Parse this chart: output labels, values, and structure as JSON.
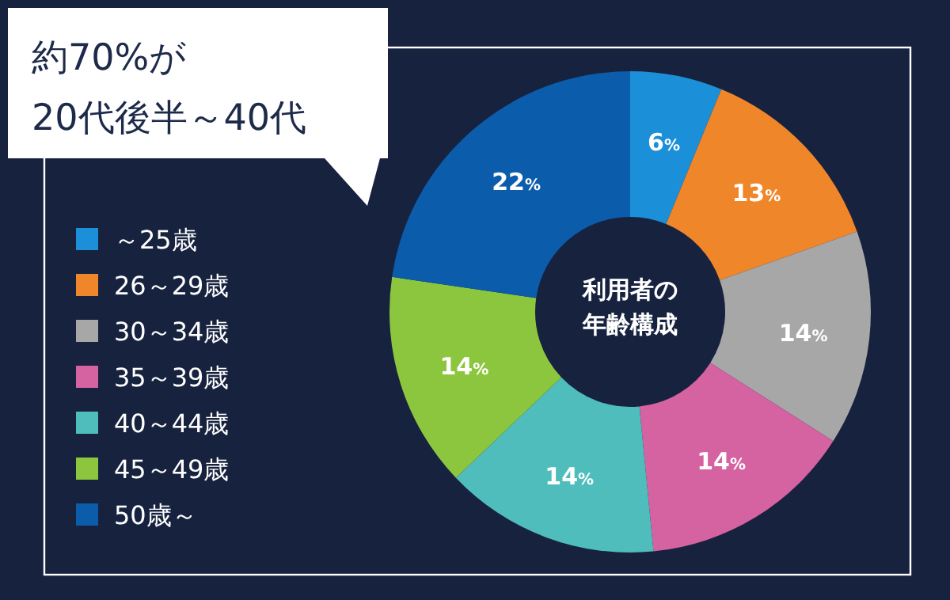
{
  "chart_data": {
    "type": "donut",
    "title": "利用者の年齢構成",
    "categories": [
      "～25歳",
      "26～29歳",
      "30～34歳",
      "35～39歳",
      "40～44歳",
      "45～49歳",
      "50歳～"
    ],
    "values": [
      6,
      13,
      14,
      14,
      14,
      14,
      22
    ],
    "colors": [
      "#1b8fd8",
      "#f0862a",
      "#a7a7a7",
      "#d562a1",
      "#4fbdbb",
      "#8cc63e",
      "#0b5cab"
    ],
    "value_labels": [
      "6%",
      "13%",
      "14%",
      "14%",
      "14%",
      "14%",
      "22%"
    ],
    "legend": "left",
    "annotations": [
      "約70%が\n20代後半～40代"
    ]
  }
}
